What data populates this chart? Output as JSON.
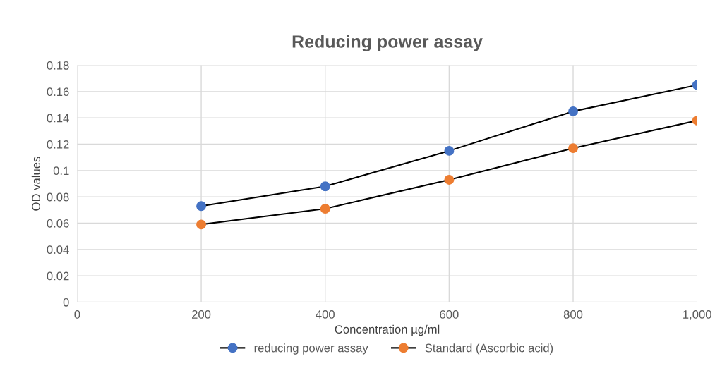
{
  "chart_data": {
    "type": "line",
    "title": "Reducing power assay",
    "xlabel": "Concentration µg/ml",
    "ylabel": "OD values",
    "x": [
      200,
      400,
      600,
      800,
      1000
    ],
    "series": [
      {
        "name": "reducing power assay",
        "color": "#4472c4",
        "values": [
          0.073,
          0.088,
          0.115,
          0.145,
          0.165
        ]
      },
      {
        "name": "Standard (Ascorbic acid)",
        "color": "#ed7d31",
        "values": [
          0.059,
          0.071,
          0.093,
          0.117,
          0.138
        ]
      }
    ],
    "xlim": [
      0,
      1000
    ],
    "xticks": [
      0,
      200,
      400,
      600,
      800,
      {
        "value": 1000,
        "label": "1,000"
      }
    ],
    "ylim": [
      0,
      0.18
    ],
    "yticks": [
      0,
      0.02,
      0.04,
      0.06,
      0.08,
      0.1,
      0.12,
      0.14,
      0.16,
      0.18
    ],
    "grid": true,
    "legend": "bottom",
    "marker": "circle",
    "line_style": "solid"
  }
}
